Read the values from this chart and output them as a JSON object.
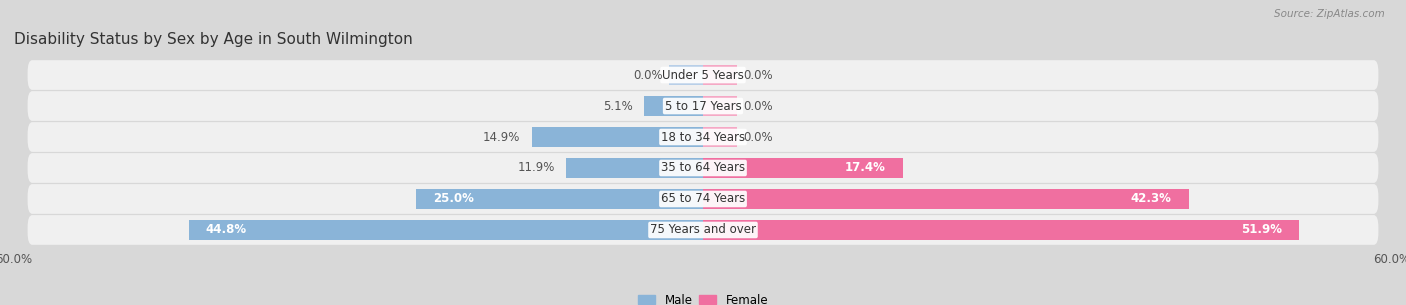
{
  "title": "Disability Status by Sex by Age in South Wilmington",
  "source": "Source: ZipAtlas.com",
  "categories": [
    "Under 5 Years",
    "5 to 17 Years",
    "18 to 34 Years",
    "35 to 64 Years",
    "65 to 74 Years",
    "75 Years and over"
  ],
  "male_values": [
    0.0,
    5.1,
    14.9,
    11.9,
    25.0,
    44.8
  ],
  "female_values": [
    0.0,
    0.0,
    0.0,
    17.4,
    42.3,
    51.9
  ],
  "male_color": "#8ab4d8",
  "female_color": "#f06fa0",
  "female_color_light": "#f5a8c5",
  "bg_color": "#d8d8d8",
  "row_bg_color": "#f0f0f0",
  "max_val": 60.0,
  "bar_height": 0.62,
  "title_fontsize": 11,
  "label_fontsize": 8.5,
  "value_fontsize": 8.5
}
